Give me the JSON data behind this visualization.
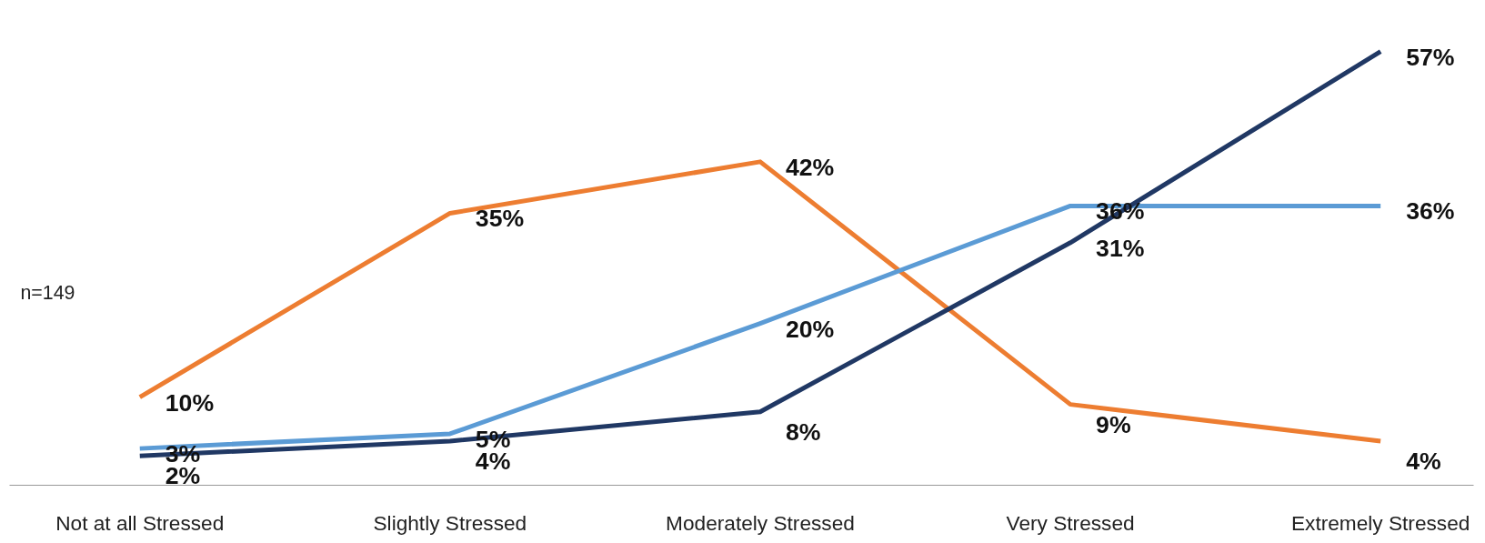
{
  "chart_data": {
    "type": "line",
    "categories": [
      "Not at all Stressed",
      "Slightly Stressed",
      "Moderately Stressed",
      "Very Stressed",
      "Extremely Stressed"
    ],
    "series": [
      {
        "color": "#ed7d31",
        "values": [
          10,
          35,
          42,
          9,
          4
        ],
        "value_labels": [
          "10%",
          "35%",
          "42%",
          "9%",
          "4%"
        ]
      },
      {
        "color": "#5b9bd5",
        "values": [
          3,
          5,
          20,
          36,
          36
        ],
        "value_labels": [
          "3%",
          "5%",
          "20%",
          "36%",
          "36%"
        ]
      },
      {
        "color": "#203864",
        "values": [
          2,
          4,
          8,
          31,
          57
        ],
        "value_labels": [
          "2%",
          "4%",
          "8%",
          "31%",
          "57%"
        ]
      }
    ],
    "grid": false,
    "marker": "none",
    "line_style": "solid",
    "tick_labels": "x",
    "annotations": [
      "n=149"
    ]
  }
}
